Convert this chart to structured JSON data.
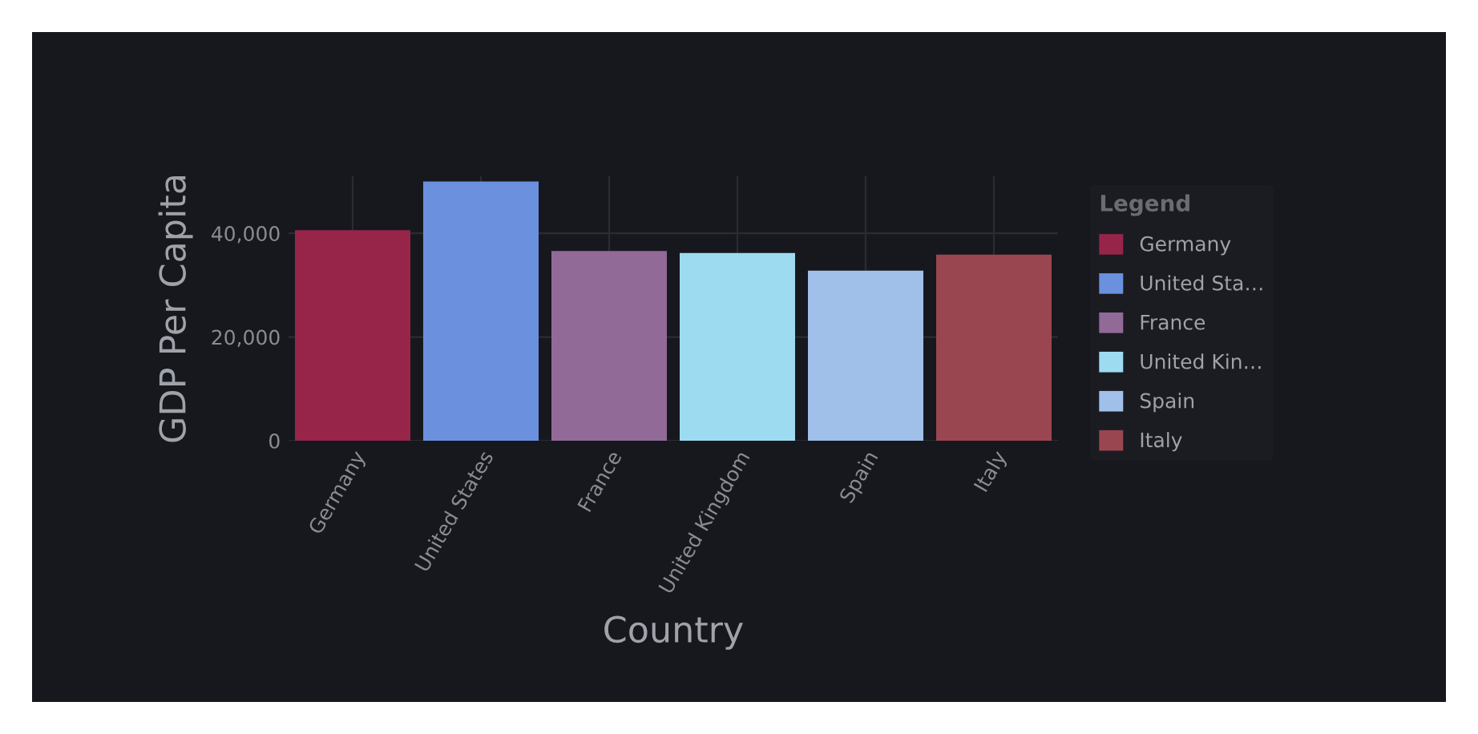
{
  "chart_data": {
    "type": "bar",
    "xlabel": "Country",
    "ylabel": "GDP Per Capita",
    "legend_title": "Legend",
    "categories": [
      "Germany",
      "United States",
      "France",
      "United Kingdom",
      "Spain",
      "Italy"
    ],
    "series": [
      {
        "name": "Germany",
        "color": "#962549",
        "values": [
          40600,
          null,
          null,
          null,
          null,
          null
        ]
      },
      {
        "name": "United Sta…",
        "color": "#6a90de",
        "values": [
          null,
          50000,
          null,
          null,
          null,
          null
        ]
      },
      {
        "name": "France",
        "color": "#916a98",
        "values": [
          null,
          null,
          36600,
          null,
          null,
          null
        ]
      },
      {
        "name": "United Kin…",
        "color": "#9ddcf0",
        "values": [
          null,
          null,
          null,
          36200,
          null,
          null
        ]
      },
      {
        "name": "Spain",
        "color": "#a0c0ea",
        "values": [
          null,
          null,
          null,
          null,
          32800,
          null
        ]
      },
      {
        "name": "Italy",
        "color": "#9a4650",
        "values": [
          null,
          null,
          null,
          null,
          null,
          35900
        ]
      }
    ],
    "ylim": [
      0,
      51000
    ],
    "yticks": [
      {
        "value": 0,
        "label": "0"
      },
      {
        "value": 20000,
        "label": "20,000"
      },
      {
        "value": 40000,
        "label": "40,000"
      }
    ],
    "grid": true,
    "legend": "right"
  }
}
